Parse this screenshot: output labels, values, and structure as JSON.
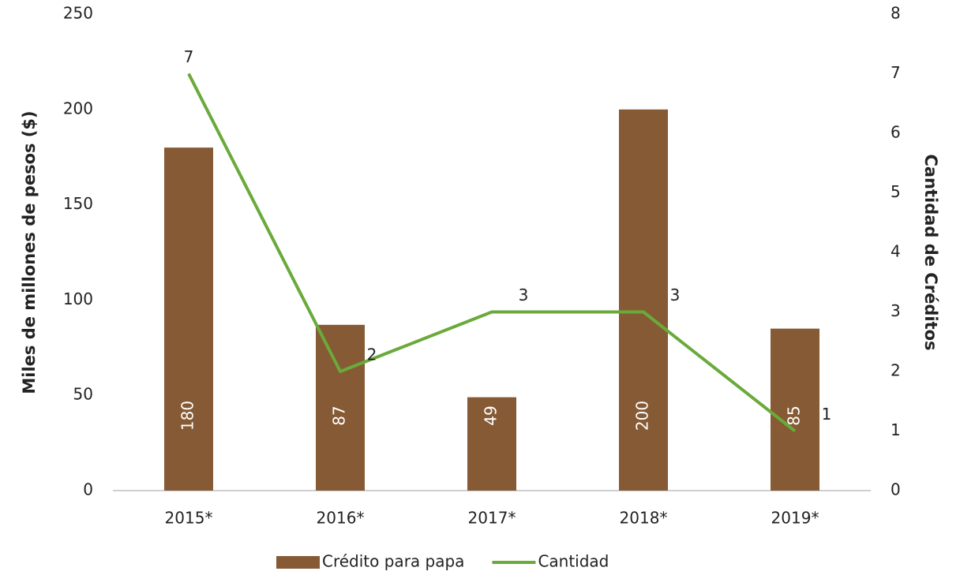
{
  "chart_data": {
    "type": "bar",
    "categories": [
      "2015*",
      "2016*",
      "2017*",
      "2018*",
      "2019*"
    ],
    "series": [
      {
        "name": "Crédito para papa",
        "type": "bar",
        "color": "#855a34",
        "values": [
          180,
          87,
          49,
          200,
          85
        ]
      },
      {
        "name": "Cantidad",
        "type": "line",
        "axis": "y2",
        "color": "#6aaa3a",
        "values": [
          7,
          2,
          3,
          3,
          1
        ]
      }
    ],
    "ylabel": "Miles de millones de pesos ($)",
    "y2label": "Cantidad de Créditos",
    "ylim": [
      0,
      250
    ],
    "yticks": [
      0,
      50,
      100,
      150,
      200,
      250
    ],
    "y2lim": [
      0,
      8
    ],
    "y2ticks": [
      0,
      1,
      2,
      3,
      4,
      5,
      6,
      7,
      8
    ],
    "grid": false,
    "legend": "bottom"
  }
}
